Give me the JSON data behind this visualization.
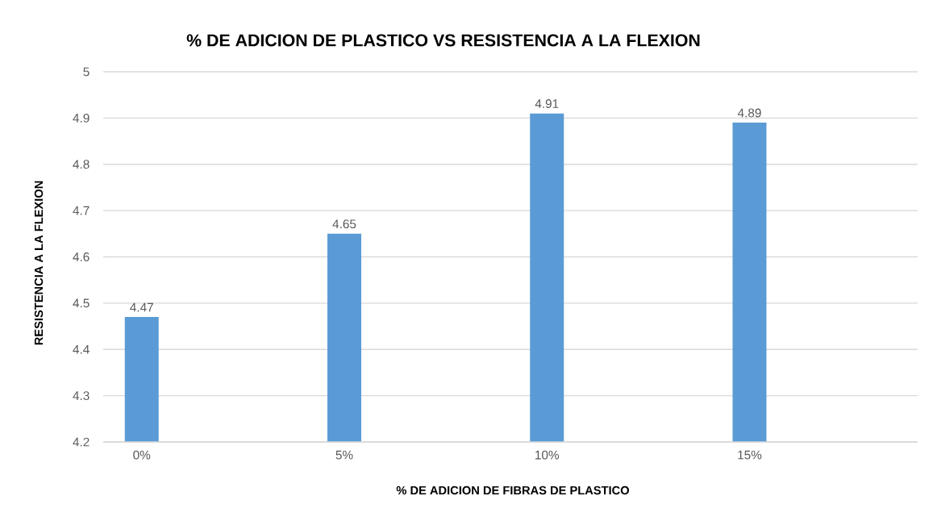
{
  "chart_data": {
    "type": "bar",
    "title": "% DE ADICION DE PLASTICO VS RESISTENCIA A LA FLEXION",
    "xlabel": "% DE ADICION DE FIBRAS DE PLASTICO",
    "ylabel": "RESISTENCIA A LA FLEXION",
    "categories": [
      "0%",
      "5%",
      "10%",
      "15%"
    ],
    "values": [
      4.47,
      4.65,
      4.91,
      4.89
    ],
    "color": "#5b9bd5",
    "ylim": [
      4.2,
      5
    ],
    "yticks": [
      4.2,
      4.3,
      4.4,
      4.5,
      4.6,
      4.7,
      4.8,
      4.9,
      5
    ],
    "grid": "y",
    "data_labels": true
  }
}
